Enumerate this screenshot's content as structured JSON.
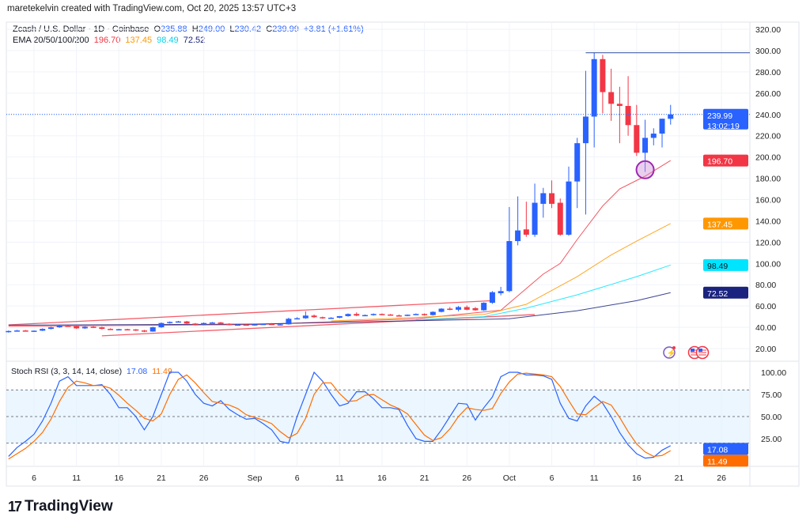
{
  "credit": "maretekelvin created with TradingView.com, Oct 20, 2025 13:57 UTC+3",
  "legend": {
    "symbol": "Zcash / U.S. Dollar · 1D · Coinbase",
    "open_label": "O",
    "open": "235.88",
    "high_label": "H",
    "high": "249.00",
    "low_label": "L",
    "low": "230.42",
    "close_label": "C",
    "close": "239.99",
    "change": "+3.81 (+1.61%)",
    "ema_label": "EMA 20/50/100/200",
    "ema20": "196.70",
    "ema50": "137.45",
    "ema100": "98.49",
    "ema200": "72.52"
  },
  "stoch_legend": {
    "label": "Stoch RSI (3, 3, 14, 14, close)",
    "k": "17.08",
    "d": "11.49"
  },
  "logo": {
    "mark": "17",
    "text": "TradingView"
  },
  "colors": {
    "up": "#2962ff",
    "down": "#f23645",
    "ema20": "#f23645",
    "ema50": "#ff9800",
    "ema100": "#00e5ff",
    "ema200": "#1a237e",
    "stoch_k": "#2962ff",
    "stoch_d": "#ff6d00",
    "band": "#e3f2fd",
    "circle": "#9c27b0"
  },
  "chart_data": [
    {
      "type": "candlestick",
      "title": "Zcash / U.S. Dollar · 1D · Coinbase",
      "ylim": [
        20,
        320
      ],
      "price_ticks": [
        "320.00",
        "300.00",
        "280.00",
        "260.00",
        "240.00",
        "220.00",
        "200.00",
        "180.00",
        "160.00",
        "140.00",
        "120.00",
        "100.00",
        "80.00",
        "60.00",
        "40.00",
        "20.00"
      ],
      "date_ticks": [
        {
          "label": "6",
          "date": "2025-08-06"
        },
        {
          "label": "11",
          "date": "2025-08-11"
        },
        {
          "label": "16",
          "date": "2025-08-16"
        },
        {
          "label": "21",
          "date": "2025-08-21"
        },
        {
          "label": "26",
          "date": "2025-08-26"
        },
        {
          "label": "Sep",
          "date": "2025-09-01"
        },
        {
          "label": "6",
          "date": "2025-09-06"
        },
        {
          "label": "11",
          "date": "2025-09-11"
        },
        {
          "label": "16",
          "date": "2025-09-16"
        },
        {
          "label": "21",
          "date": "2025-09-21"
        },
        {
          "label": "26",
          "date": "2025-09-26"
        },
        {
          "label": "Oct",
          "date": "2025-10-01"
        },
        {
          "label": "6",
          "date": "2025-10-06"
        },
        {
          "label": "11",
          "date": "2025-10-11"
        },
        {
          "label": "16",
          "date": "2025-10-16"
        },
        {
          "label": "21",
          "date": "2025-10-21"
        },
        {
          "label": "26",
          "date": "2025-10-26"
        }
      ],
      "grid": true,
      "candles": [
        [
          "2025-08-03",
          36,
          37,
          35,
          36.5
        ],
        [
          "2025-08-04",
          36.5,
          37.5,
          36,
          37
        ],
        [
          "2025-08-05",
          37,
          37.5,
          36,
          36.2
        ],
        [
          "2025-08-06",
          36.2,
          37,
          35.8,
          36.8
        ],
        [
          "2025-08-07",
          36.8,
          39,
          36.5,
          38.5
        ],
        [
          "2025-08-08",
          38.5,
          40.5,
          38,
          40
        ],
        [
          "2025-08-09",
          40,
          42,
          39.5,
          41.5
        ],
        [
          "2025-08-10",
          41.5,
          42,
          40.5,
          41
        ],
        [
          "2025-08-11",
          41,
          41.5,
          38.5,
          39
        ],
        [
          "2025-08-12",
          39,
          41,
          38.5,
          40.5
        ],
        [
          "2025-08-13",
          40.5,
          41,
          39.5,
          40
        ],
        [
          "2025-08-14",
          40,
          40.5,
          38,
          38.5
        ],
        [
          "2025-08-15",
          38.5,
          39,
          37.5,
          38
        ],
        [
          "2025-08-16",
          38,
          38.5,
          37.5,
          38.2
        ],
        [
          "2025-08-17",
          38.2,
          38.6,
          37.8,
          38
        ],
        [
          "2025-08-18",
          38,
          38.3,
          36.5,
          37
        ],
        [
          "2025-08-19",
          37,
          37.5,
          35.5,
          36
        ],
        [
          "2025-08-20",
          36,
          40.5,
          35.8,
          40
        ],
        [
          "2025-08-21",
          40,
          44.5,
          39.5,
          44
        ],
        [
          "2025-08-22",
          44,
          45.5,
          43.5,
          45
        ],
        [
          "2025-08-23",
          45,
          46,
          44.5,
          45.5
        ],
        [
          "2025-08-24",
          45.5,
          46,
          43,
          43.5
        ],
        [
          "2025-08-25",
          43.5,
          44,
          42,
          42.5
        ],
        [
          "2025-08-26",
          42.5,
          44.5,
          42,
          44
        ],
        [
          "2025-08-27",
          44,
          45,
          43.5,
          44.5
        ],
        [
          "2025-08-28",
          44.5,
          45,
          43,
          43.3
        ],
        [
          "2025-08-29",
          43.3,
          43.8,
          42,
          42.5
        ],
        [
          "2025-08-30",
          42.5,
          43,
          42,
          42.6
        ],
        [
          "2025-08-31",
          42.6,
          43.2,
          42.2,
          42.5
        ],
        [
          "2025-09-01",
          42.5,
          43,
          41.5,
          42.8
        ],
        [
          "2025-09-02",
          42.8,
          43.5,
          42.3,
          43.2
        ],
        [
          "2025-09-03",
          43.2,
          44,
          42.5,
          42.7
        ],
        [
          "2025-09-04",
          42.7,
          43.2,
          42,
          42.8
        ],
        [
          "2025-09-05",
          42.8,
          49,
          42.5,
          48
        ],
        [
          "2025-09-06",
          48,
          49.5,
          47.5,
          48.5
        ],
        [
          "2025-09-07",
          48.5,
          55,
          48,
          51
        ],
        [
          "2025-09-08",
          51,
          52,
          49,
          49.5
        ],
        [
          "2025-09-09",
          49.5,
          50,
          48,
          48.5
        ],
        [
          "2025-09-10",
          48.5,
          49.5,
          48,
          49
        ],
        [
          "2025-09-11",
          49,
          50.5,
          48.5,
          50.5
        ],
        [
          "2025-09-12",
          50.5,
          53,
          50,
          52.5
        ],
        [
          "2025-09-13",
          52.5,
          54,
          50.5,
          51
        ],
        [
          "2025-09-14",
          51,
          52,
          50.5,
          51.5
        ],
        [
          "2025-09-15",
          51.5,
          53,
          51,
          52.5
        ],
        [
          "2025-09-16",
          52.5,
          53,
          51.5,
          52
        ],
        [
          "2025-09-17",
          52,
          52.5,
          51,
          51.2
        ],
        [
          "2025-09-18",
          51.2,
          52,
          50.5,
          50.8
        ],
        [
          "2025-09-19",
          50.8,
          52,
          50.5,
          51.8
        ],
        [
          "2025-09-20",
          51.8,
          53,
          51.5,
          52.5
        ],
        [
          "2025-09-21",
          52.5,
          53,
          51,
          51.5
        ],
        [
          "2025-09-22",
          51.5,
          55,
          51,
          54.5
        ],
        [
          "2025-09-23",
          54.5,
          58,
          54,
          57.5
        ],
        [
          "2025-09-24",
          57.5,
          59,
          56,
          56.5
        ],
        [
          "2025-09-25",
          56.5,
          60,
          55,
          59
        ],
        [
          "2025-09-26",
          59,
          60.5,
          56,
          56.5
        ],
        [
          "2025-09-27",
          58,
          59,
          55.5,
          56
        ],
        [
          "2025-09-28",
          56,
          63.5,
          55.5,
          63
        ],
        [
          "2025-09-29",
          63,
          74,
          62,
          73
        ],
        [
          "2025-09-30",
          72,
          78,
          70,
          74
        ],
        [
          "2025-10-01",
          74,
          153,
          73,
          121
        ],
        [
          "2025-10-02",
          121,
          163,
          117,
          131
        ],
        [
          "2025-10-03",
          132,
          158,
          125,
          127
        ],
        [
          "2025-10-04",
          127,
          175,
          125,
          157
        ],
        [
          "2025-10-05",
          156,
          171,
          143,
          166
        ],
        [
          "2025-10-06",
          166,
          178,
          152,
          156
        ],
        [
          "2025-10-07",
          157,
          161,
          126,
          127
        ],
        [
          "2025-10-08",
          127,
          191,
          126,
          177
        ],
        [
          "2025-10-09",
          177,
          218,
          152,
          213
        ],
        [
          "2025-10-10",
          213,
          281,
          146,
          238
        ],
        [
          "2025-10-11",
          238,
          298,
          209,
          292
        ],
        [
          "2025-10-12",
          292,
          296,
          241,
          261
        ],
        [
          "2025-10-13",
          261,
          283,
          234,
          250
        ],
        [
          "2025-10-14",
          250,
          266,
          213,
          248
        ],
        [
          "2025-10-15",
          248,
          276,
          220,
          230
        ],
        [
          "2025-10-16",
          230,
          249,
          201,
          204
        ],
        [
          "2025-10-17",
          204,
          235,
          186,
          218
        ],
        [
          "2025-10-18",
          218,
          227,
          211,
          222
        ],
        [
          "2025-10-19",
          222,
          236,
          209,
          236
        ],
        [
          "2025-10-20",
          235.88,
          249,
          230.42,
          239.99
        ]
      ],
      "ema": [
        {
          "name": "EMA 20",
          "value": "196.70",
          "points": [
            [
              "2025-08-03",
              41
            ],
            [
              "2025-09-01",
              42.5
            ],
            [
              "2025-09-20",
              48
            ],
            [
              "2025-09-30",
              56
            ],
            [
              "2025-10-05",
              90
            ],
            [
              "2025-10-07",
              100
            ],
            [
              "2025-10-09",
              122.5
            ],
            [
              "2025-10-12",
              154
            ],
            [
              "2025-10-14",
              170
            ],
            [
              "2025-10-17",
              182
            ],
            [
              "2025-10-20",
              196.7
            ]
          ]
        },
        {
          "name": "EMA 50",
          "value": "137.45",
          "points": [
            [
              "2025-09-10",
              46
            ],
            [
              "2025-09-28",
              52
            ],
            [
              "2025-10-03",
              61.6
            ],
            [
              "2025-10-09",
              87.6
            ],
            [
              "2025-10-13",
              108
            ],
            [
              "2025-10-16",
              121
            ],
            [
              "2025-10-20",
              137.45
            ]
          ]
        },
        {
          "name": "EMA 100",
          "value": "98.49",
          "points": [
            [
              "2025-09-20",
              47
            ],
            [
              "2025-09-28",
              50
            ],
            [
              "2025-10-03",
              58
            ],
            [
              "2025-10-09",
              70.5
            ],
            [
              "2025-10-16",
              87.6
            ],
            [
              "2025-10-20",
              98.49
            ]
          ]
        },
        {
          "name": "EMA 200",
          "value": "72.52",
          "points": [
            [
              "2025-08-03",
              42
            ],
            [
              "2025-09-01",
              43
            ],
            [
              "2025-10-01",
              48
            ],
            [
              "2025-10-09",
              55.6
            ],
            [
              "2025-10-16",
              65
            ],
            [
              "2025-10-20",
              72.52
            ]
          ]
        }
      ],
      "last_price": {
        "value": "239.99",
        "countdown": "13:02:19"
      },
      "annotations": {
        "resistance_line": {
          "price": 298,
          "from": "2025-10-10"
        },
        "channel_upper": [
          [
            "2025-08-03",
            42.3
          ],
          [
            "2025-09-29",
            65
          ]
        ],
        "channel_lower": [
          [
            "2025-08-14",
            32
          ],
          [
            "2025-10-04",
            52
          ]
        ],
        "support_circle": {
          "date": "2025-10-17",
          "price": 188
        }
      },
      "icons": [
        "lightning-event-icon",
        "us-flag-events-icon"
      ]
    },
    {
      "type": "line",
      "title": "Stoch RSI (3, 3, 14, 14, close)",
      "ylim": [
        0,
        100
      ],
      "ticks": [
        "100.00",
        "75.00",
        "50.00",
        "25.00"
      ],
      "bands": [
        20,
        50,
        80
      ],
      "series": [
        {
          "name": "%K",
          "last": "17.08",
          "values": [
            5,
            15,
            22,
            30,
            45,
            65,
            90,
            95,
            85,
            85,
            85,
            86,
            75,
            60,
            60,
            50,
            35,
            50,
            75,
            100,
            100,
            90,
            75,
            65,
            62,
            68,
            58,
            52,
            47,
            48,
            42,
            35,
            22,
            20,
            50,
            75,
            100,
            90,
            75,
            62,
            65,
            78,
            78,
            70,
            60,
            60,
            58,
            40,
            25,
            22,
            22,
            35,
            50,
            65,
            64,
            46,
            60,
            72,
            95,
            100,
            100,
            97,
            97,
            96,
            92,
            65,
            48,
            45,
            62,
            73,
            65,
            50,
            32,
            18,
            8,
            3,
            4,
            12,
            17.08
          ]
        },
        {
          "name": "%D",
          "last": "11.49",
          "values": [
            2,
            8,
            14,
            22,
            32,
            47,
            67,
            83,
            90,
            88,
            85,
            85,
            82,
            74,
            65,
            57,
            48,
            45,
            53,
            75,
            92,
            97,
            88,
            77,
            67,
            65,
            63,
            59,
            52,
            49,
            46,
            42,
            33,
            26,
            31,
            48,
            75,
            88,
            88,
            76,
            67,
            68,
            74,
            75,
            69,
            63,
            59,
            53,
            41,
            29,
            23,
            26,
            36,
            50,
            60,
            58,
            57,
            59,
            76,
            89,
            98,
            99,
            98,
            97,
            95,
            84,
            68,
            53,
            52,
            60,
            67,
            63,
            49,
            33,
            19,
            10,
            5,
            6,
            11.49
          ]
        }
      ]
    }
  ]
}
